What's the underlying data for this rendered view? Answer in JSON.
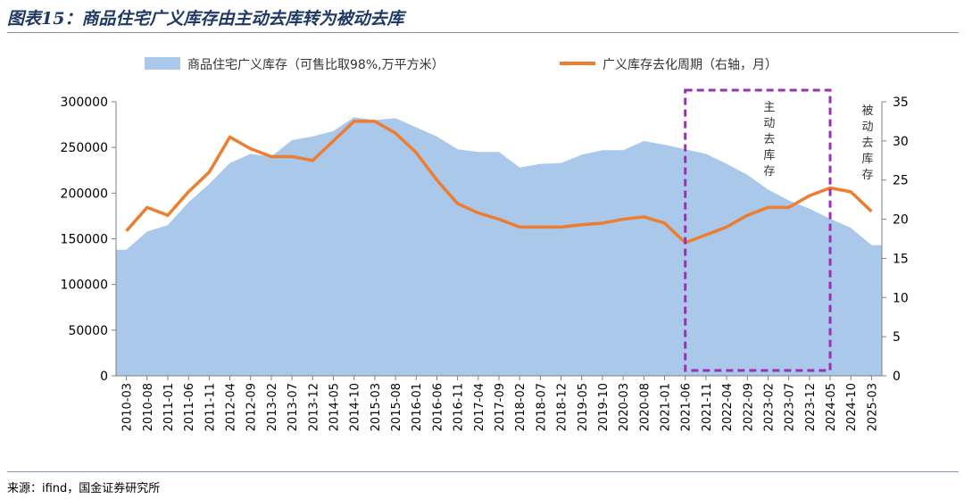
{
  "title": "图表15：商品住宅广义库存由主动去库转为被动去库",
  "source": "来源：ifind，国金证券研究所",
  "chart_data": {
    "type": "area+line",
    "title": "图表15：商品住宅广义库存由主动去库转为被动去库",
    "legend": {
      "placement": "top",
      "items": [
        {
          "name": "商品住宅广义库存（可售比取98%,万平方米）",
          "type": "area",
          "color": "#a9c8ea"
        },
        {
          "name": "广义库存去化周期（右轴，月）",
          "type": "line",
          "color": "#ed7d31"
        }
      ]
    },
    "x_tick_labels": [
      "2010-03",
      "2010-08",
      "2011-01",
      "2011-06",
      "2011-11",
      "2012-04",
      "2012-09",
      "2013-02",
      "2013-07",
      "2013-12",
      "2014-05",
      "2014-10",
      "2015-03",
      "2015-08",
      "2016-01",
      "2016-06",
      "2016-11",
      "2017-04",
      "2017-09",
      "2018-02",
      "2018-07",
      "2018-12",
      "2019-05",
      "2019-10",
      "2020-03",
      "2020-08",
      "2021-01",
      "2021-06",
      "2021-11",
      "2022-04",
      "2022-09",
      "2023-02",
      "2023-07",
      "2023-12",
      "2024-05",
      "2024-10",
      "2025-03"
    ],
    "left_axis": {
      "ylim": [
        0,
        300000
      ],
      "ticks": [
        0,
        50000,
        100000,
        150000,
        200000,
        250000,
        300000
      ]
    },
    "right_axis": {
      "ylim": [
        0,
        35
      ],
      "ticks": [
        0,
        5,
        10,
        15,
        20,
        25,
        30,
        35
      ]
    },
    "series": [
      {
        "name": "商品住宅广义库存（可售比取98%,万平方米）",
        "axis": "left",
        "x": [
          "2010-03",
          "2010-08",
          "2011-01",
          "2011-06",
          "2011-11",
          "2012-04",
          "2012-09",
          "2013-02",
          "2013-07",
          "2013-12",
          "2014-05",
          "2014-10",
          "2015-03",
          "2015-08",
          "2016-01",
          "2016-06",
          "2016-11",
          "2017-04",
          "2017-09",
          "2018-02",
          "2018-07",
          "2018-12",
          "2019-05",
          "2019-10",
          "2020-03",
          "2020-08",
          "2021-01",
          "2021-06",
          "2021-11",
          "2022-04",
          "2022-09",
          "2023-02",
          "2023-07",
          "2023-12",
          "2024-05",
          "2024-10",
          "2025-03"
        ],
        "values": [
          138000,
          158000,
          165000,
          190000,
          210000,
          233000,
          243000,
          240000,
          258000,
          262000,
          268000,
          283000,
          280000,
          282000,
          272000,
          262000,
          248000,
          245000,
          245000,
          228000,
          232000,
          233000,
          242000,
          247000,
          247000,
          257000,
          253000,
          248000,
          243000,
          232000,
          220000,
          204000,
          192000,
          183000,
          172000,
          162000,
          143000
        ]
      },
      {
        "name": "广义库存去化周期（右轴，月）",
        "axis": "right",
        "x": [
          "2010-03",
          "2010-08",
          "2011-01",
          "2011-06",
          "2011-11",
          "2012-04",
          "2012-09",
          "2013-02",
          "2013-07",
          "2013-12",
          "2014-05",
          "2014-10",
          "2015-03",
          "2015-08",
          "2016-01",
          "2016-06",
          "2016-11",
          "2017-04",
          "2017-09",
          "2018-02",
          "2018-07",
          "2018-12",
          "2019-05",
          "2019-10",
          "2020-03",
          "2020-08",
          "2021-01",
          "2021-06",
          "2021-11",
          "2022-04",
          "2022-09",
          "2023-02",
          "2023-07",
          "2023-12",
          "2024-05",
          "2024-10",
          "2025-03"
        ],
        "values": [
          18.5,
          21.5,
          20.5,
          23.5,
          26,
          30.5,
          29,
          28,
          28,
          27.5,
          30,
          32.5,
          32.5,
          31,
          28.5,
          25,
          22,
          20.8,
          20,
          19,
          19,
          19,
          19.3,
          19.5,
          20,
          20.3,
          19.5,
          17,
          18,
          19,
          20.5,
          21.5,
          21.5,
          23,
          24,
          23.5,
          21
        ]
      }
    ],
    "annotations": [
      {
        "text": "主动去库存",
        "range": [
          "2021-06",
          "2024-05"
        ],
        "style": "dashed-box",
        "color": "#9b30b5"
      },
      {
        "text": "被动去库存",
        "range": [
          "2024-05",
          "2025-03"
        ]
      }
    ]
  }
}
